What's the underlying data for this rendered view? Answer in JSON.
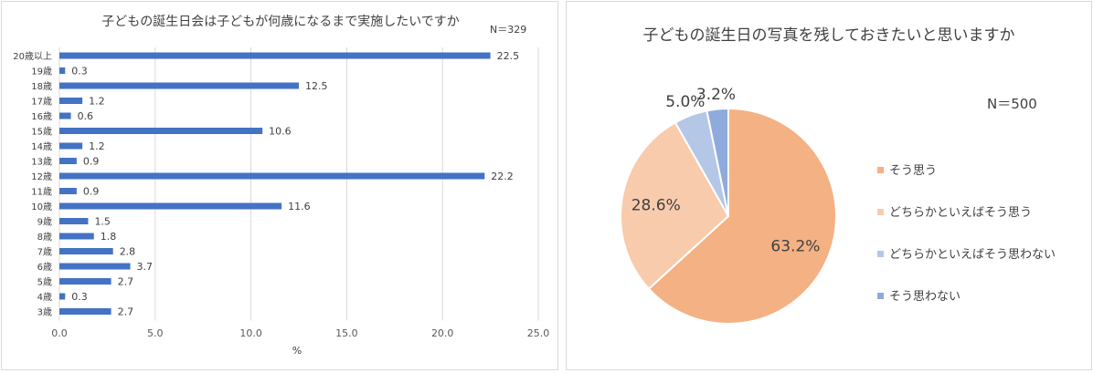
{
  "chart_data": [
    {
      "type": "bar",
      "orientation": "horizontal",
      "title": "子どもの誕生日会は子どもが何歳になるまで実施したいですか",
      "n_label": "N＝329",
      "categories": [
        "20歳以上",
        "19歳",
        "18歳",
        "17歳",
        "16歳",
        "15歳",
        "14歳",
        "13歳",
        "12歳",
        "11歳",
        "10歳",
        "9歳",
        "8歳",
        "7歳",
        "6歳",
        "5歳",
        "4歳",
        "3歳"
      ],
      "values": [
        22.5,
        0.3,
        12.5,
        1.2,
        0.6,
        10.6,
        1.2,
        0.9,
        22.2,
        0.9,
        11.6,
        1.5,
        1.8,
        2.8,
        3.7,
        2.7,
        0.3,
        2.7
      ],
      "value_labels": [
        "22.5",
        "0.3",
        "12.5",
        "1.2",
        "0.6",
        "10.6",
        "1.2",
        "0.9",
        "22.2",
        "0.9",
        "11.6",
        "1.5",
        "1.8",
        "2.8",
        "3.7",
        "2.7",
        "0.3",
        "2.7"
      ],
      "xlim": [
        0,
        25
      ],
      "xticks": [
        "0.0",
        "5.0",
        "10.0",
        "15.0",
        "20.0",
        "25.0"
      ],
      "xlabel": "%",
      "grid": true,
      "bar_color": "#4472c4"
    },
    {
      "type": "pie",
      "title": "子どもの誕生日の写真を残しておきたいと思いますか",
      "n_label": "N＝500",
      "labels": [
        "そう思う",
        "どちらかといえばそう思う",
        "どちらかといえばそう思わない",
        "そう思わない"
      ],
      "values": [
        63.2,
        28.6,
        5.0,
        3.2
      ],
      "value_labels": [
        "63.2%",
        "28.6%",
        "5.0%",
        "3.2%"
      ],
      "colors": [
        "#f4b183",
        "#f8cbad",
        "#b4c7e7",
        "#8faadc"
      ],
      "legend_position": "right"
    }
  ]
}
